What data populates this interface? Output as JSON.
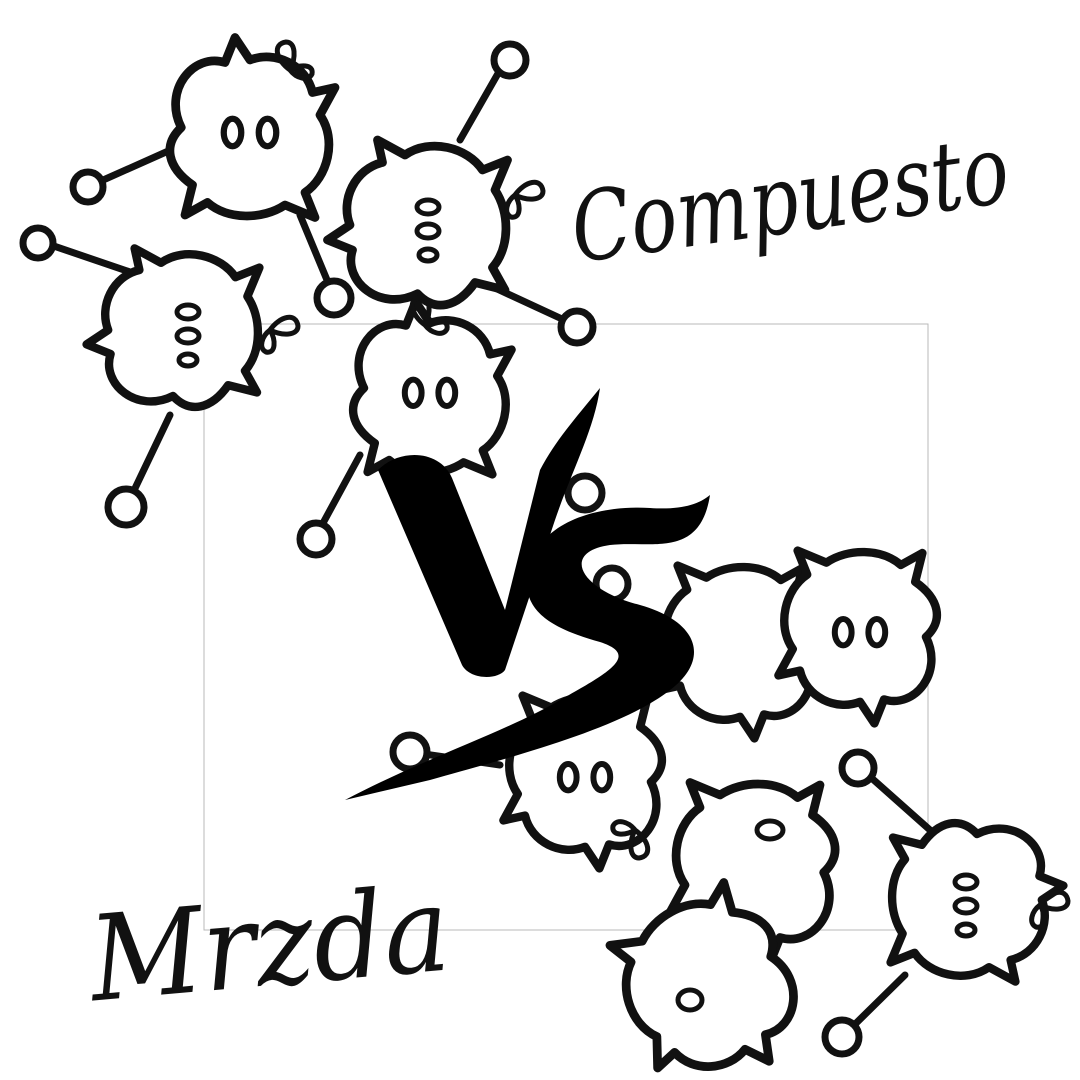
{
  "labels": {
    "top_right": "Compuesto",
    "bottom_left": "Mrzda",
    "center": "VS"
  },
  "colors": {
    "ink": "#111111",
    "background": "#ffffff",
    "frame": "#b9b9b9"
  },
  "creature_count": 9,
  "icons": [
    "fuzzy-creature-icon",
    "tether-ring-icon",
    "sprout-icon"
  ]
}
